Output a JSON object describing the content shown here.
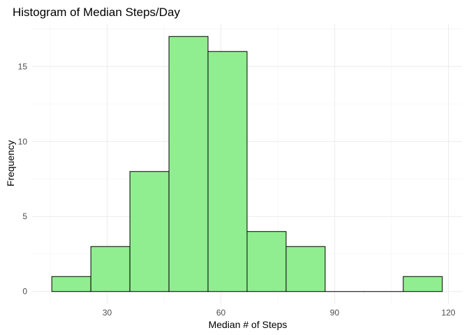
{
  "chart_data": {
    "type": "bar",
    "title": "Histogram of Median Steps/Day",
    "xlabel": "Median # of Steps",
    "ylabel": "Frequency",
    "bins": [
      {
        "start": 15.4,
        "end": 25.7,
        "count": 1
      },
      {
        "start": 25.7,
        "end": 36.0,
        "count": 3
      },
      {
        "start": 36.0,
        "end": 46.3,
        "count": 8
      },
      {
        "start": 46.3,
        "end": 56.6,
        "count": 17
      },
      {
        "start": 56.6,
        "end": 66.9,
        "count": 16
      },
      {
        "start": 66.9,
        "end": 77.2,
        "count": 4
      },
      {
        "start": 77.2,
        "end": 87.5,
        "count": 3
      },
      {
        "start": 87.5,
        "end": 97.8,
        "count": 0
      },
      {
        "start": 97.8,
        "end": 108.1,
        "count": 0
      },
      {
        "start": 108.1,
        "end": 118.4,
        "count": 1
      }
    ],
    "xlim": [
      10.2,
      123.6
    ],
    "ylim": [
      -0.85,
      17.85
    ],
    "x_ticks": [
      30,
      60,
      90,
      120
    ],
    "y_ticks": [
      0,
      5,
      10,
      15
    ],
    "grid": true,
    "bar_fill": "#90ee90",
    "bar_outline": "#000000",
    "background": "#ffffff"
  }
}
